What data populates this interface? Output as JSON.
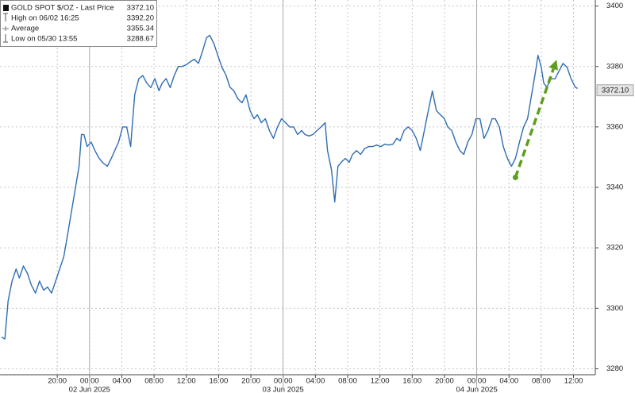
{
  "chart_data": {
    "type": "line",
    "color": "#2f6db3",
    "grid": true,
    "xlim": [
      12.9,
      86.7
    ],
    "ylim": [
      3278,
      3402
    ],
    "yticks": [
      3280,
      3300,
      3320,
      3340,
      3360,
      3380,
      3400
    ],
    "xticks": [
      {
        "value": 20,
        "label": "20:00"
      },
      {
        "value": 24,
        "label": "00:00"
      },
      {
        "value": 28,
        "label": "04:00"
      },
      {
        "value": 32,
        "label": "08:00"
      },
      {
        "value": 36,
        "label": "12:00"
      },
      {
        "value": 40,
        "label": "16:00"
      },
      {
        "value": 44,
        "label": "20:00"
      },
      {
        "value": 48,
        "label": "00:00"
      },
      {
        "value": 52,
        "label": "04:00"
      },
      {
        "value": 56,
        "label": "08:00"
      },
      {
        "value": 60,
        "label": "12:00"
      },
      {
        "value": 64,
        "label": "16:00"
      },
      {
        "value": 68,
        "label": "20:00"
      },
      {
        "value": 72,
        "label": "00:00"
      },
      {
        "value": 76,
        "label": "04:00"
      },
      {
        "value": 80,
        "label": "08:00"
      },
      {
        "value": 84,
        "label": "12:00"
      }
    ],
    "date_ticks": [
      {
        "value": 24,
        "label": "02 Jun 2025"
      },
      {
        "value": 48,
        "label": "03 Jun 2025"
      },
      {
        "value": 72,
        "label": "04 Jun 2025"
      }
    ],
    "stats": [
      {
        "name": "GOLD SPOT $/OZ - Last Price",
        "value": 3372.1,
        "label": "3372.10"
      },
      {
        "name": "High on 06/02 16:25",
        "value": 3392.2,
        "label": "3392.20"
      },
      {
        "name": "Average",
        "value": 3355.34
      },
      {
        "name": "Low on 05/30 13:55",
        "value": 3288.67
      }
    ],
    "arrow": {
      "from": [
        76.8,
        3343.3
      ],
      "to": [
        81.9,
        3382.2
      ],
      "color": "#5e9e1f"
    },
    "x": [
      13.1,
      13.5,
      13.9,
      14.4,
      14.9,
      15.3,
      15.8,
      16.3,
      16.8,
      17.3,
      17.8,
      18.3,
      18.8,
      19.3,
      19.8,
      20.3,
      20.8,
      21.2,
      21.7,
      22.2,
      22.7,
      23.0,
      23.3,
      23.7,
      24.2,
      24.7,
      25.2,
      25.7,
      26.2,
      26.7,
      27.1,
      27.6,
      28.1,
      28.6,
      29.1,
      29.6,
      30.1,
      30.6,
      31.1,
      31.6,
      32.1,
      32.6,
      33.0,
      33.5,
      34.0,
      34.5,
      35.0,
      35.5,
      36.0,
      36.5,
      37.0,
      37.5,
      38.0,
      38.5,
      38.9,
      39.4,
      39.9,
      40.4,
      40.9,
      41.4,
      41.9,
      42.4,
      42.9,
      43.4,
      43.9,
      44.4,
      44.8,
      45.3,
      45.8,
      46.3,
      46.8,
      47.3,
      47.8,
      48.3,
      48.8,
      49.3,
      49.8,
      50.3,
      50.7,
      51.2,
      51.7,
      52.2,
      52.7,
      53.2,
      53.5,
      54.0,
      54.4,
      54.8,
      55.2,
      55.7,
      56.2,
      56.6,
      57.1,
      57.6,
      58.1,
      58.6,
      59.1,
      59.6,
      60.1,
      60.6,
      61.1,
      61.6,
      62.1,
      62.5,
      63.0,
      63.5,
      64.0,
      64.5,
      65.0,
      65.5,
      66.0,
      66.5,
      67.0,
      67.5,
      68.0,
      68.4,
      68.9,
      69.4,
      69.9,
      70.4,
      70.9,
      71.4,
      71.9,
      72.4,
      72.9,
      73.4,
      73.9,
      74.3,
      74.8,
      75.3,
      75.8,
      76.3,
      76.8,
      77.3,
      77.8,
      78.3,
      78.8,
      79.3,
      79.6,
      80.0,
      80.3,
      80.7,
      81.2,
      81.7,
      82.2,
      82.7,
      83.2,
      83.7,
      84.2,
      84.5
    ],
    "values": [
      3290.5,
      3289.8,
      3302.4,
      3309,
      3313,
      3310,
      3314,
      3311.5,
      3307.6,
      3305,
      3309,
      3306,
      3307,
      3305,
      3309,
      3313,
      3317,
      3323,
      3331,
      3339,
      3347,
      3357.5,
      3357.5,
      3353.5,
      3355,
      3352,
      3349.6,
      3348,
      3347,
      3349.6,
      3352,
      3355,
      3360,
      3360,
      3353.5,
      3370.6,
      3375.9,
      3377,
      3374.5,
      3373,
      3376,
      3372,
      3374.5,
      3376,
      3373,
      3377,
      3380,
      3380,
      3380.6,
      3381.6,
      3382.4,
      3381,
      3385,
      3389.5,
      3390.3,
      3387.7,
      3383.7,
      3379.8,
      3377.2,
      3373.2,
      3371.9,
      3369.3,
      3368,
      3370.6,
      3365.4,
      3362.7,
      3364,
      3361.4,
      3362.7,
      3358.8,
      3356.2,
      3360,
      3362.7,
      3361.4,
      3360,
      3360,
      3357.5,
      3358.8,
      3357.5,
      3357,
      3357.5,
      3358.8,
      3360,
      3361.4,
      3352.2,
      3345.7,
      3335.2,
      3347,
      3348.3,
      3349.6,
      3348.3,
      3350.9,
      3352.2,
      3350.9,
      3352.8,
      3353.5,
      3353.5,
      3354,
      3353.5,
      3354.3,
      3354,
      3354.3,
      3356.2,
      3355.4,
      3358.8,
      3360,
      3358.8,
      3356.2,
      3352.2,
      3358.8,
      3365.4,
      3371.9,
      3365.4,
      3364,
      3362.7,
      3360,
      3358.8,
      3355,
      3352.2,
      3350.9,
      3355,
      3357.5,
      3362.7,
      3362.7,
      3356.2,
      3358.8,
      3362.7,
      3362.7,
      3360,
      3353.5,
      3349.6,
      3347,
      3349.6,
      3355,
      3360,
      3362.7,
      3370.6,
      3378.5,
      3383.7,
      3379.8,
      3374.5,
      3373.2,
      3375.9,
      3375.9,
      3378.5,
      3381,
      3379.8,
      3375.9,
      3373.2,
      3372.7
    ]
  }
}
